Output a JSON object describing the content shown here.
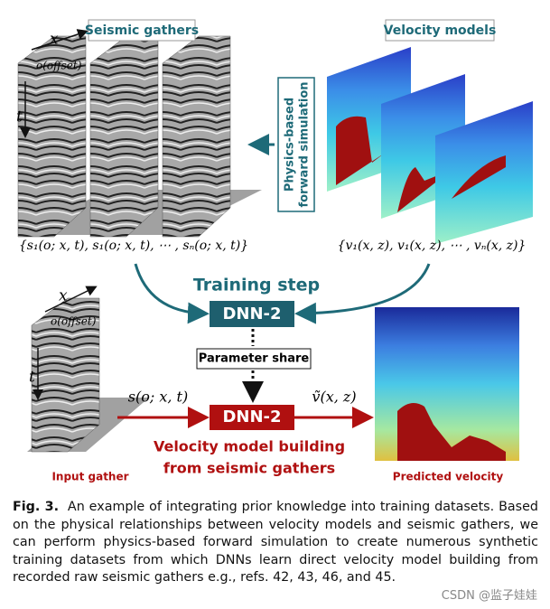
{
  "figure": {
    "seismic_label": "Seismic gathers",
    "velocity_label": "Velocity models",
    "simulation_label": [
      "Physics-based",
      "forward simulation"
    ],
    "axis_x": "x",
    "axis_offset": "o(offset)",
    "axis_t": "t",
    "seismic_set": "{s₁(o; x, t), s₁(o; x, t), ⋯ , sₙ(o; x, t)}",
    "velocity_set": "{v₁(x, z), v₁(x, z), ⋯ , vₙ(x, z)}",
    "training_step": "Training step",
    "dnn_train": "DNN-2",
    "parameter_share": "Parameter share",
    "dnn_predict": "DNN-2",
    "input_symbol": "s(o; x, t)",
    "output_symbol": "ṽ(x, z)",
    "task_label": [
      "Velocity model building",
      "from seismic gathers"
    ],
    "input_gather": "Input gather",
    "predicted_velocity": "Predicted velocity"
  },
  "caption": {
    "label": "Fig. 3.",
    "text": "An example of integrating prior knowledge into training datasets. Based on the physical relationships between velocity models and seismic gathers, we can perform physics-based forward simulation to create numerous synthetic training datasets from which DNNs learn direct velocity model building from recorded raw seismic gathers e.g., refs. 42, 43, 46, and 45."
  },
  "watermark": "CSDN @监子娃娃"
}
